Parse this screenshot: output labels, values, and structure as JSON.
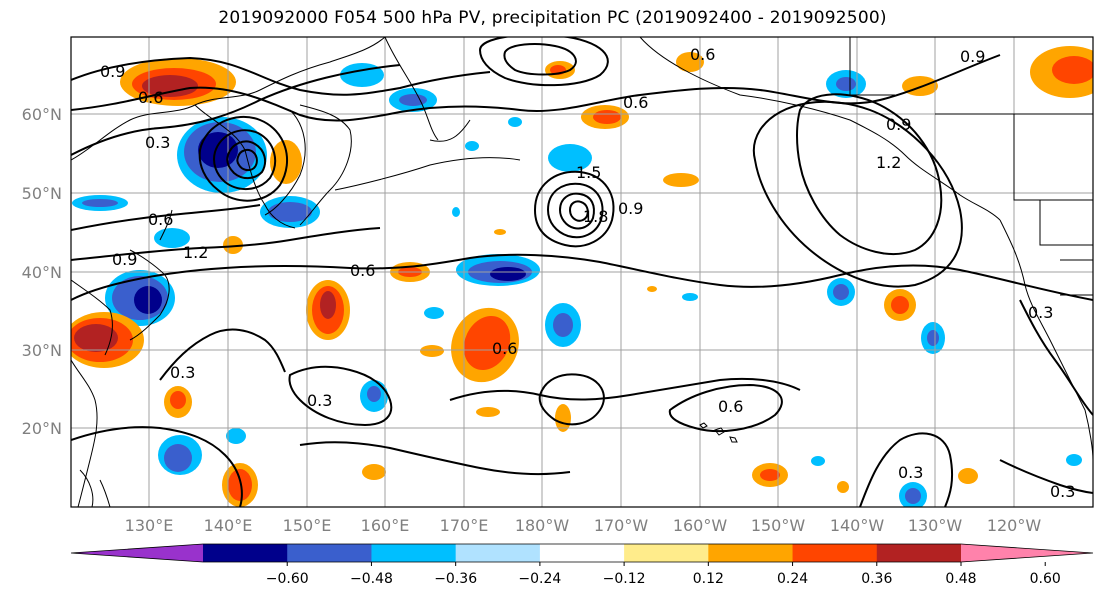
{
  "title": "2019092000 F054 500 hPa PV, precipitation PC (2019092400 - 2019092500)",
  "lat_labels": [
    "60°N",
    "50°N",
    "40°N",
    "30°N",
    "20°N"
  ],
  "lon_labels": [
    "130°E",
    "140°E",
    "150°E",
    "160°E",
    "170°E",
    "180°W",
    "170°W",
    "160°W",
    "150°W",
    "140°W",
    "130°W",
    "120°W"
  ],
  "contour_labels": [
    "0.9",
    "0.6",
    "0.3",
    "0.6",
    "0.9",
    "1.2",
    "0.6",
    "0.3",
    "0.6",
    "0.3",
    "1.5",
    "1.8",
    "0.9",
    "0.6",
    "0.9",
    "1.2",
    "0.9",
    "0.6",
    "0.6",
    "0.3",
    "0.3",
    "0.3"
  ],
  "colorbar": {
    "ticks": [
      "−0.60",
      "−0.48",
      "−0.36",
      "−0.24",
      "−0.12",
      "0.12",
      "0.24",
      "0.36",
      "0.48",
      "0.60"
    ],
    "colors": [
      "#9932cc",
      "#00008b",
      "#3a5fcd",
      "#00bfff",
      "#b0e2ff",
      "#ffffff",
      "#ffec8b",
      "#ffa500",
      "#ff4500",
      "#b22222",
      "#ff82ab"
    ]
  }
}
